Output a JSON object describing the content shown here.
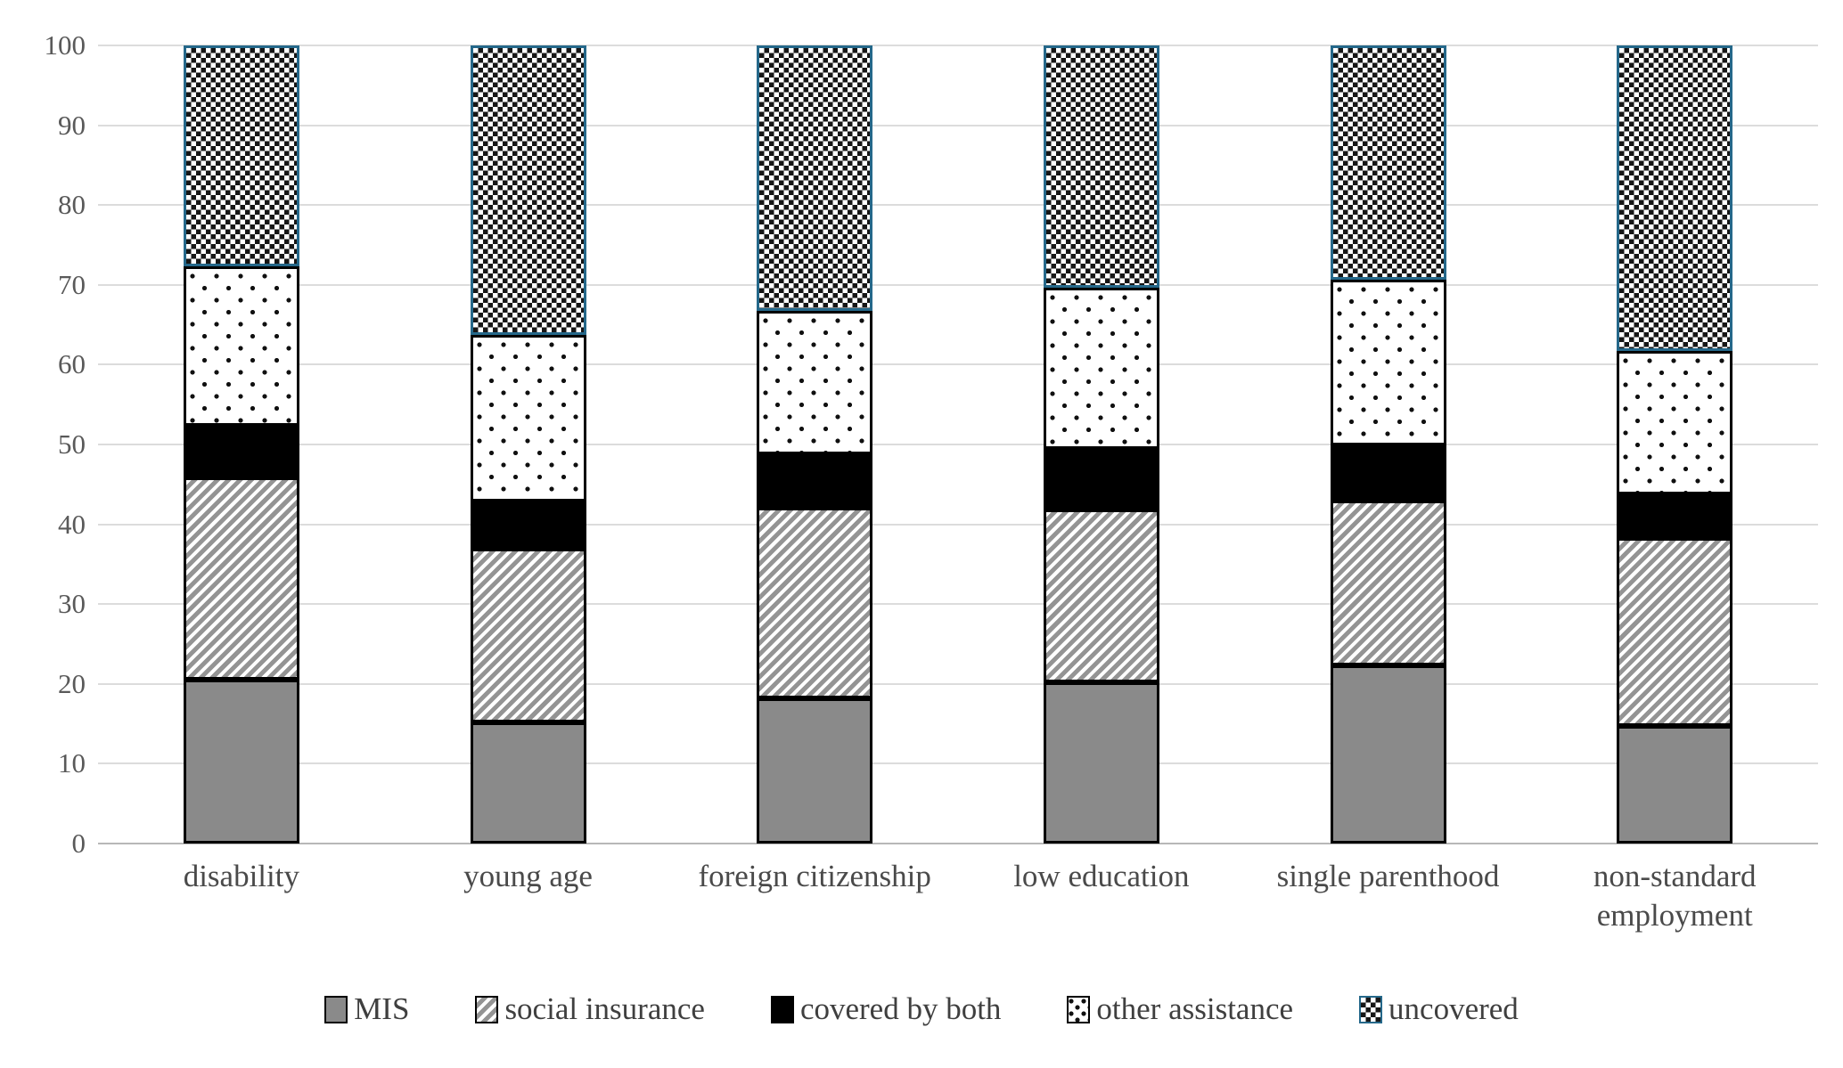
{
  "chart_data": {
    "type": "bar",
    "stacked": true,
    "orientation": "vertical",
    "title": "",
    "xlabel": "",
    "ylabel": "",
    "ylim": [
      0,
      100
    ],
    "ytick_interval": 10,
    "yticks": [
      "0",
      "10",
      "20",
      "30",
      "40",
      "50",
      "60",
      "70",
      "80",
      "90",
      "100"
    ],
    "grid": "horizontal",
    "legend_position": "bottom",
    "categories": [
      "disability",
      "young age",
      "foreign citizenship",
      "low education",
      "single parenthood",
      "non-standard employment"
    ],
    "series": [
      {
        "name": "MIS",
        "pattern": "solid-gray",
        "values": [
          20.5,
          15.2,
          18.2,
          20.2,
          22.3,
          14.7
        ]
      },
      {
        "name": "social insurance",
        "pattern": "diagonal-hatch",
        "values": [
          25.4,
          21.7,
          23.9,
          21.7,
          20.7,
          23.6
        ]
      },
      {
        "name": "covered by both",
        "pattern": "solid-black",
        "values": [
          6.5,
          6.0,
          6.7,
          7.6,
          6.9,
          5.4
        ]
      },
      {
        "name": "other assistance",
        "pattern": "dots",
        "values": [
          19.9,
          20.8,
          17.9,
          20.1,
          20.8,
          18.0
        ]
      },
      {
        "name": "uncovered",
        "pattern": "checkerboard",
        "values": [
          27.7,
          36.3,
          33.3,
          30.4,
          29.3,
          38.3
        ]
      }
    ]
  },
  "colors": {
    "mis_fill": "#8a8a8a",
    "hatch_stroke": "#949494",
    "covered_both_fill": "#000000",
    "segment_border": "#000000",
    "uncovered_border": "#25688a",
    "gridline": "#dcdcdc",
    "axis_line": "#b7b7b7",
    "tick_label": "#595959",
    "category_label": "#4a4a4a",
    "legend_label": "#3f3f3f",
    "background": "#ffffff"
  }
}
